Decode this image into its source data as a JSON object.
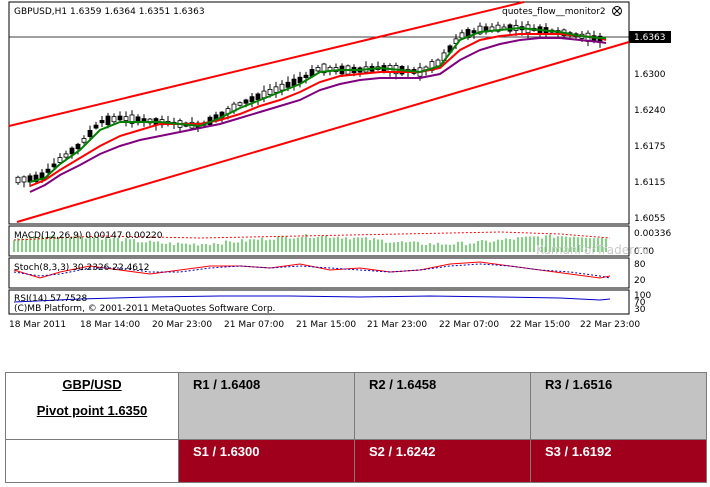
{
  "chart": {
    "header": "GBPUSD,H1  1.6359 1.6364 1.6351 1.6363",
    "indicator_label": "quotes_flow__monitor2",
    "price_tag": "1.6363",
    "watermark": "KumanForTrader.ru",
    "price_axis": [
      "1.6300",
      "1.6240",
      "1.6175",
      "1.6115",
      "1.6055"
    ],
    "time_axis": [
      "18 Mar 2011",
      "18 Mar 14:00",
      "20 Mar 23:00",
      "21 Mar 07:00",
      "21 Mar 15:00",
      "21 Mar 23:00",
      "22 Mar 07:00",
      "22 Mar 15:00",
      "22 Mar 23:00"
    ],
    "macd_label": "MACD(12,26,9) 0.00147 0.00220",
    "macd_axis": [
      "0.00336",
      "0.00"
    ],
    "stoch_label": "Stoch(8,3,3) 30.2326 22.4612",
    "stoch_axis": [
      "80",
      "20"
    ],
    "rsi_label": "RSI(14) 57.7528",
    "rsi_axis": [
      "100",
      "70",
      "30"
    ],
    "copyright": "(C)MB Platform, © 2001-2011 MetaQuotes Software Corp.",
    "colors": {
      "channel": "#ff0000",
      "ma_fast": "#008000",
      "ma_mid": "#ff0000",
      "ma_slow": "#800080",
      "macd": "#00aa00",
      "stoch_main": "#ff0000",
      "rsi": "#0000cc"
    }
  },
  "pivot": {
    "pair": "GBP/USD",
    "pivot_point": "Pivot point 1.6350",
    "resistance": [
      "R1 / 1.6408",
      "R2 / 1.6458",
      "R3 / 1.6516"
    ],
    "support": [
      "S1 / 1.6300",
      "S2 / 1.6242",
      "S3 / 1.6192"
    ],
    "colors": {
      "resistance_bg": "#c3c3c3",
      "support_bg": "#a1001c"
    }
  }
}
